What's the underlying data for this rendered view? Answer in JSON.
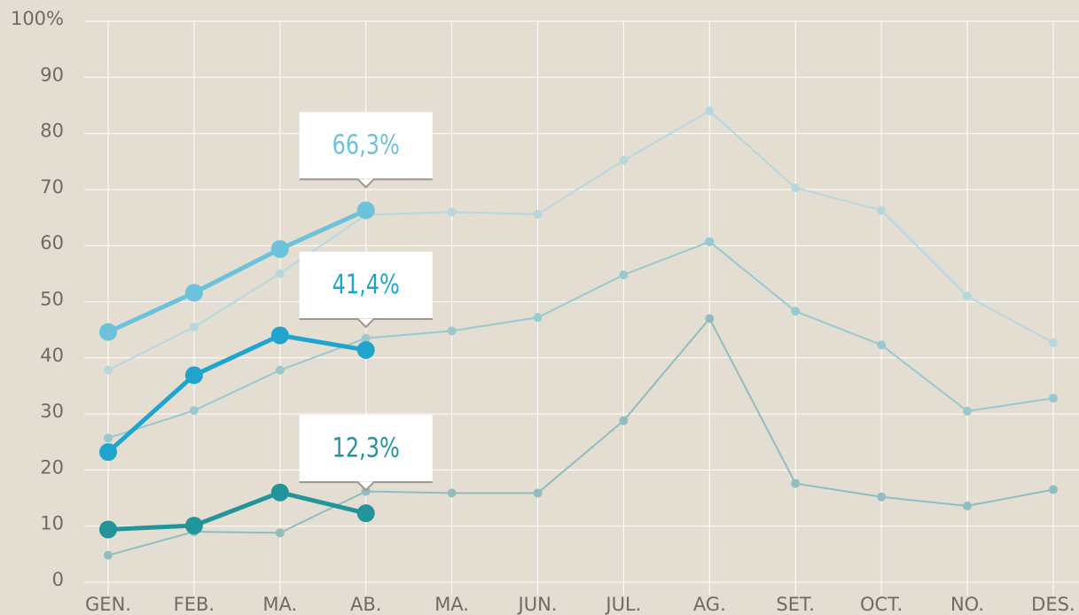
{
  "chart_data": {
    "type": "line",
    "categories": [
      "GEN.",
      "FEB.",
      "MA.",
      "AB.",
      "MA.",
      "JUN.",
      "JUL.",
      "AG.",
      "SET.",
      "OCT.",
      "NO.",
      "DES."
    ],
    "series": [
      {
        "color": "#b7d7dc",
        "values": [
          37.8,
          45.5,
          55,
          65.5,
          66,
          65.6,
          75.2,
          84,
          70.3,
          66.3,
          51,
          42.7
        ]
      },
      {
        "color": "#98c8d0",
        "values": [
          25.7,
          30.6,
          37.8,
          43.5,
          44.8,
          47.2,
          54.8,
          60.7,
          48.3,
          42.3,
          30.5,
          32.8
        ]
      },
      {
        "color": "#8fbdc0",
        "values": [
          4.8,
          9,
          8.8,
          16.2,
          15.9,
          15.9,
          28.8,
          47,
          17.6,
          15.2,
          13.6,
          16.5
        ]
      },
      {
        "color": "#6cc2da",
        "bold": true,
        "values": [
          44.6,
          51.6,
          59.4,
          66.3,
          null,
          null,
          null,
          null,
          null,
          null,
          null,
          null
        ],
        "value_labels": [
          null,
          null,
          null,
          "66,3%",
          null,
          null,
          null,
          null,
          null,
          null,
          null,
          null
        ]
      },
      {
        "color": "#1fa5cd",
        "bold": true,
        "values": [
          23.2,
          36.9,
          44,
          41.4,
          null,
          null,
          null,
          null,
          null,
          null,
          null,
          null
        ],
        "value_labels": [
          null,
          null,
          null,
          "41,4%",
          null,
          null,
          null,
          null,
          null,
          null,
          null,
          null
        ]
      },
      {
        "color": "#22949a",
        "bold": true,
        "values": [
          9.4,
          10.1,
          16,
          12.3,
          null,
          null,
          null,
          null,
          null,
          null,
          null,
          null
        ],
        "value_labels": [
          null,
          null,
          null,
          "12,3%",
          null,
          null,
          null,
          null,
          null,
          null,
          null,
          null
        ]
      }
    ],
    "ylim": [
      0,
      100
    ],
    "yticks": [
      0,
      10,
      20,
      30,
      40,
      50,
      60,
      70,
      80,
      90,
      {
        "value": 100,
        "label": "100%"
      }
    ],
    "grid": true
  }
}
